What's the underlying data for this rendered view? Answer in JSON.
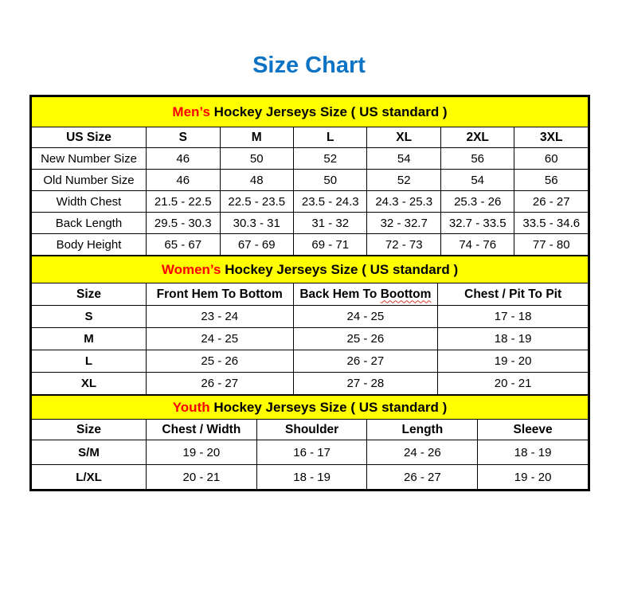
{
  "page": {
    "title": "Size Chart"
  },
  "colors": {
    "title_blue": "#0d74c5",
    "band_yellow": "#ffff00",
    "accent_red": "#ff0000",
    "border": "#000000"
  },
  "chart_data": [
    {
      "type": "table",
      "title": "Men’s Hockey Jerseys Size ( US standard )",
      "title_highlight": "Men’s",
      "title_rest": " Hockey Jerseys Size ( US standard )",
      "columns": [
        "US Size",
        "S",
        "M",
        "L",
        "XL",
        "2XL",
        "3XL"
      ],
      "rows": [
        {
          "label": "New Number Size",
          "values": [
            "46",
            "50",
            "52",
            "54",
            "56",
            "60"
          ]
        },
        {
          "label": "Old Number Size",
          "values": [
            "46",
            "48",
            "50",
            "52",
            "54",
            "56"
          ]
        },
        {
          "label": "Width Chest",
          "values": [
            "21.5 - 22.5",
            "22.5 - 23.5",
            "23.5 - 24.3",
            "24.3 - 25.3",
            "25.3 - 26",
            "26 - 27"
          ]
        },
        {
          "label": "Back Length",
          "values": [
            "29.5 - 30.3",
            "30.3 - 31",
            "31 - 32",
            "32 - 32.7",
            "32.7 - 33.5",
            "33.5 - 34.6"
          ]
        },
        {
          "label": "Body Height",
          "values": [
            "65 - 67",
            "67 - 69",
            "69 - 71",
            "72 - 73",
            "74 - 76",
            "77 - 80"
          ]
        }
      ]
    },
    {
      "type": "table",
      "title": "Women’s Hockey Jerseys Size ( US standard )",
      "title_highlight": "Women’s",
      "title_rest": " Hockey Jerseys Size ( US standard )",
      "columns": [
        "Size",
        "Front Hem To Bottom",
        {
          "pre": "Back Hem To ",
          "misspelled": "Boottom",
          "text": "Back Hem To Boottom"
        },
        "Chest / Pit To Pit"
      ],
      "rows": [
        {
          "label": "S",
          "values": [
            "23 - 24",
            "24 - 25",
            "17 - 18"
          ]
        },
        {
          "label": "M",
          "values": [
            "24 - 25",
            "25 - 26",
            "18 - 19"
          ]
        },
        {
          "label": "L",
          "values": [
            "25 - 26",
            "26 - 27",
            "19 - 20"
          ]
        },
        {
          "label": "XL",
          "values": [
            "26 - 27",
            "27 - 28",
            "20 - 21"
          ]
        }
      ]
    },
    {
      "type": "table",
      "title": "Youth Hockey Jerseys Size ( US standard )",
      "title_highlight": "Youth",
      "title_rest": " Hockey Jerseys Size ( US standard )",
      "columns": [
        "Size",
        "Chest / Width",
        "Shoulder",
        "Length",
        "Sleeve"
      ],
      "rows": [
        {
          "label": "S/M",
          "values": [
            "19 - 20",
            "16 - 17",
            "24 - 26",
            "18 - 19"
          ]
        },
        {
          "label": "L/XL",
          "values": [
            "20 - 21",
            "18 - 19",
            "26 - 27",
            "19 - 20"
          ]
        }
      ]
    }
  ]
}
